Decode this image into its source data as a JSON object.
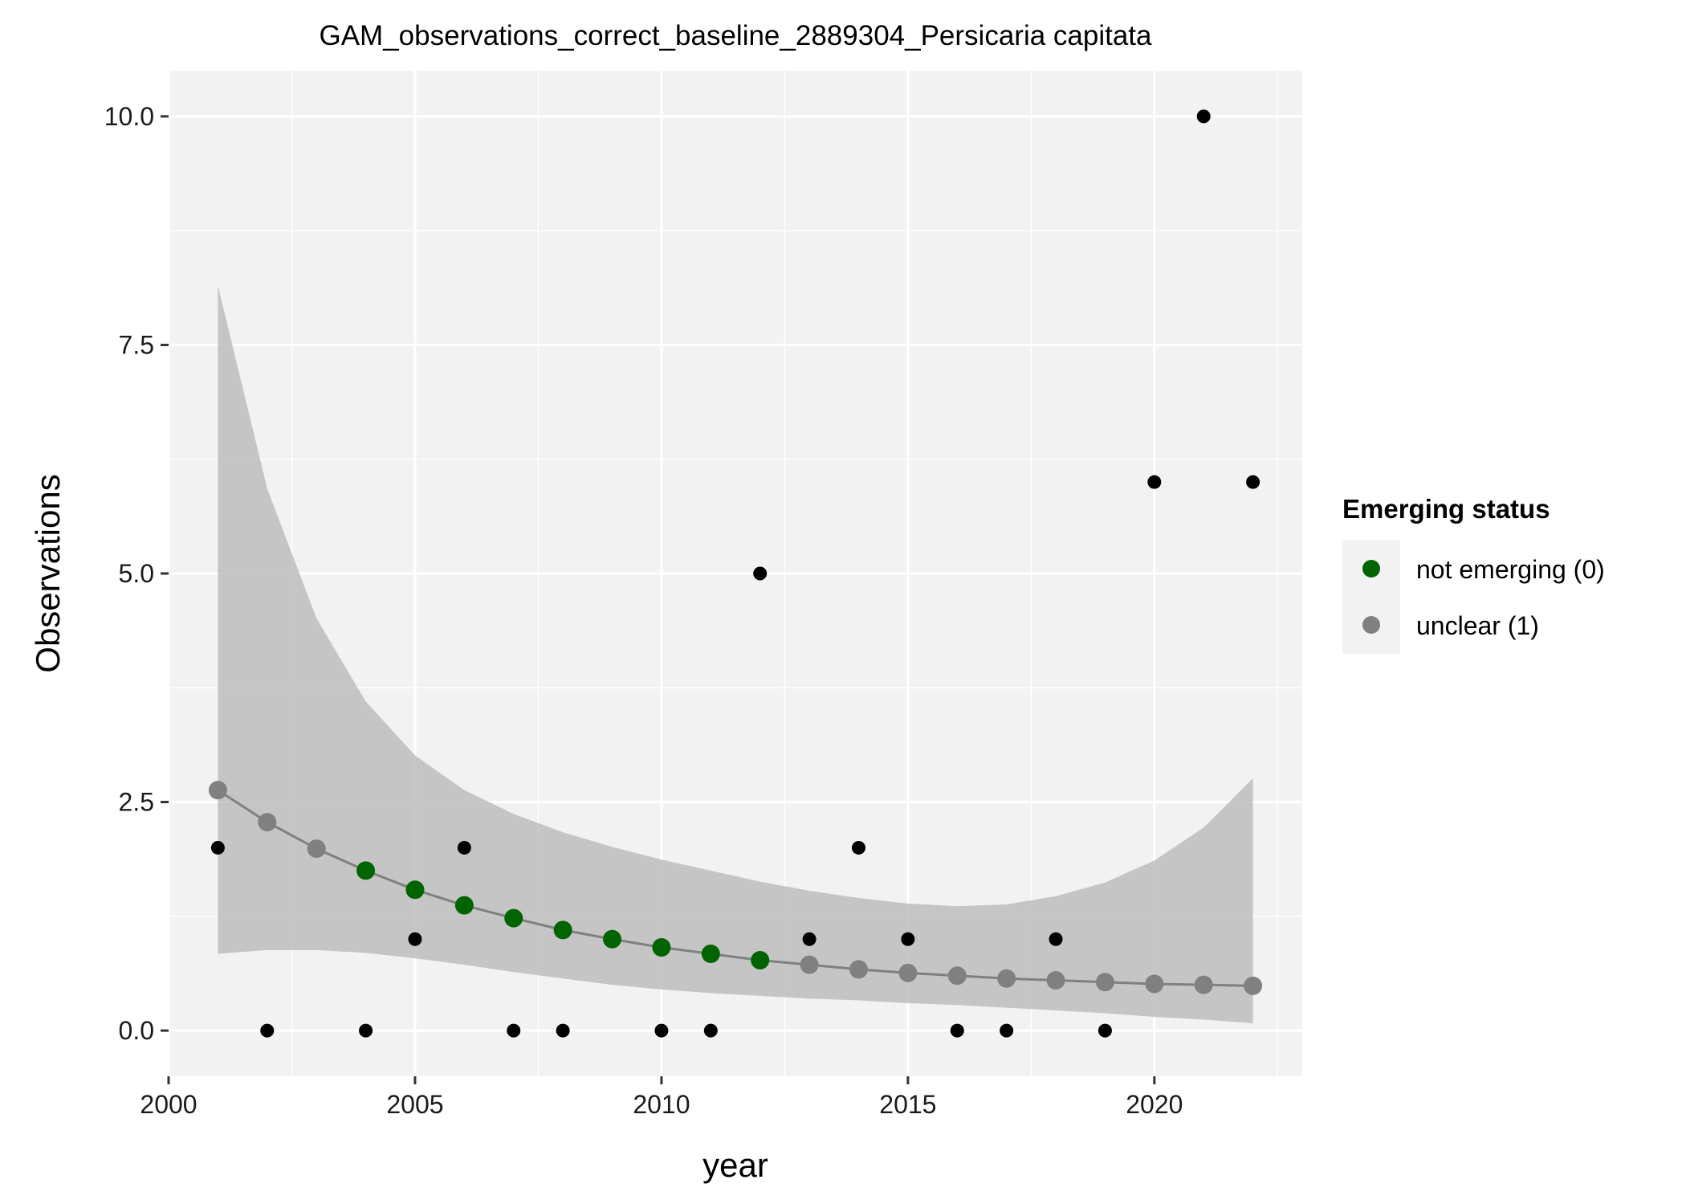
{
  "chart_data": {
    "type": "scatter",
    "title": "GAM_observations_correct_baseline_2889304_Persicaria capitata",
    "xlabel": "year",
    "ylabel": "Observations",
    "xlim": [
      2000,
      2023
    ],
    "ylim": [
      -0.5,
      10.5
    ],
    "x_ticks": [
      2000,
      2005,
      2010,
      2015,
      2020
    ],
    "x_tick_labels": [
      "2000",
      "2005",
      "2010",
      "2015",
      "2020"
    ],
    "y_ticks": [
      0,
      2.5,
      5,
      7.5,
      10
    ],
    "y_tick_labels": [
      "0.0",
      "2.5",
      "5.0",
      "7.5",
      "10.0"
    ],
    "grid": true,
    "legend": {
      "title": "Emerging status",
      "position": "right",
      "entries": [
        {
          "label": "not emerging (0)",
          "color": "#006400"
        },
        {
          "label": "unclear (1)",
          "color": "#808080"
        }
      ]
    },
    "observed": {
      "color": "#000000",
      "points": [
        {
          "x": 2001,
          "y": 2
        },
        {
          "x": 2002,
          "y": 0
        },
        {
          "x": 2004,
          "y": 0
        },
        {
          "x": 2005,
          "y": 1
        },
        {
          "x": 2006,
          "y": 2
        },
        {
          "x": 2007,
          "y": 0
        },
        {
          "x": 2008,
          "y": 0
        },
        {
          "x": 2010,
          "y": 0
        },
        {
          "x": 2011,
          "y": 0
        },
        {
          "x": 2012,
          "y": 5
        },
        {
          "x": 2013,
          "y": 1
        },
        {
          "x": 2014,
          "y": 2
        },
        {
          "x": 2015,
          "y": 1
        },
        {
          "x": 2016,
          "y": 0
        },
        {
          "x": 2017,
          "y": 0
        },
        {
          "x": 2018,
          "y": 1
        },
        {
          "x": 2019,
          "y": 0
        },
        {
          "x": 2020,
          "y": 6
        },
        {
          "x": 2021,
          "y": 10
        },
        {
          "x": 2022,
          "y": 6
        }
      ]
    },
    "fit": {
      "line_color": "#808080",
      "ribbon_color": "#bdbdbd",
      "points": [
        {
          "x": 2001,
          "y": 2.63,
          "lower": 0.84,
          "upper": 8.15,
          "status": 1
        },
        {
          "x": 2002,
          "y": 2.28,
          "lower": 0.88,
          "upper": 5.93,
          "status": 1
        },
        {
          "x": 2003,
          "y": 1.99,
          "lower": 0.88,
          "upper": 4.51,
          "status": 1
        },
        {
          "x": 2004,
          "y": 1.75,
          "lower": 0.85,
          "upper": 3.6,
          "status": 0
        },
        {
          "x": 2005,
          "y": 1.54,
          "lower": 0.79,
          "upper": 3.01,
          "status": 0
        },
        {
          "x": 2006,
          "y": 1.37,
          "lower": 0.72,
          "upper": 2.63,
          "status": 0
        },
        {
          "x": 2007,
          "y": 1.23,
          "lower": 0.64,
          "upper": 2.37,
          "status": 0
        },
        {
          "x": 2008,
          "y": 1.1,
          "lower": 0.57,
          "upper": 2.17,
          "status": 0
        },
        {
          "x": 2009,
          "y": 1.0,
          "lower": 0.5,
          "upper": 2.01,
          "status": 0
        },
        {
          "x": 2010,
          "y": 0.91,
          "lower": 0.45,
          "upper": 1.87,
          "status": 0
        },
        {
          "x": 2011,
          "y": 0.84,
          "lower": 0.41,
          "upper": 1.75,
          "status": 0
        },
        {
          "x": 2012,
          "y": 0.77,
          "lower": 0.38,
          "upper": 1.63,
          "status": 0
        },
        {
          "x": 2013,
          "y": 0.72,
          "lower": 0.35,
          "upper": 1.53,
          "status": 1
        },
        {
          "x": 2014,
          "y": 0.67,
          "lower": 0.33,
          "upper": 1.45,
          "status": 1
        },
        {
          "x": 2015,
          "y": 0.63,
          "lower": 0.3,
          "upper": 1.39,
          "status": 1
        },
        {
          "x": 2016,
          "y": 0.6,
          "lower": 0.28,
          "upper": 1.36,
          "status": 1
        },
        {
          "x": 2017,
          "y": 0.57,
          "lower": 0.25,
          "upper": 1.38,
          "status": 1
        },
        {
          "x": 2018,
          "y": 0.55,
          "lower": 0.22,
          "upper": 1.47,
          "status": 1
        },
        {
          "x": 2019,
          "y": 0.53,
          "lower": 0.19,
          "upper": 1.62,
          "status": 1
        },
        {
          "x": 2020,
          "y": 0.51,
          "lower": 0.15,
          "upper": 1.86,
          "status": 1
        },
        {
          "x": 2021,
          "y": 0.5,
          "lower": 0.12,
          "upper": 2.22,
          "status": 1
        },
        {
          "x": 2022,
          "y": 0.49,
          "lower": 0.08,
          "upper": 2.76,
          "status": 1
        }
      ]
    }
  }
}
